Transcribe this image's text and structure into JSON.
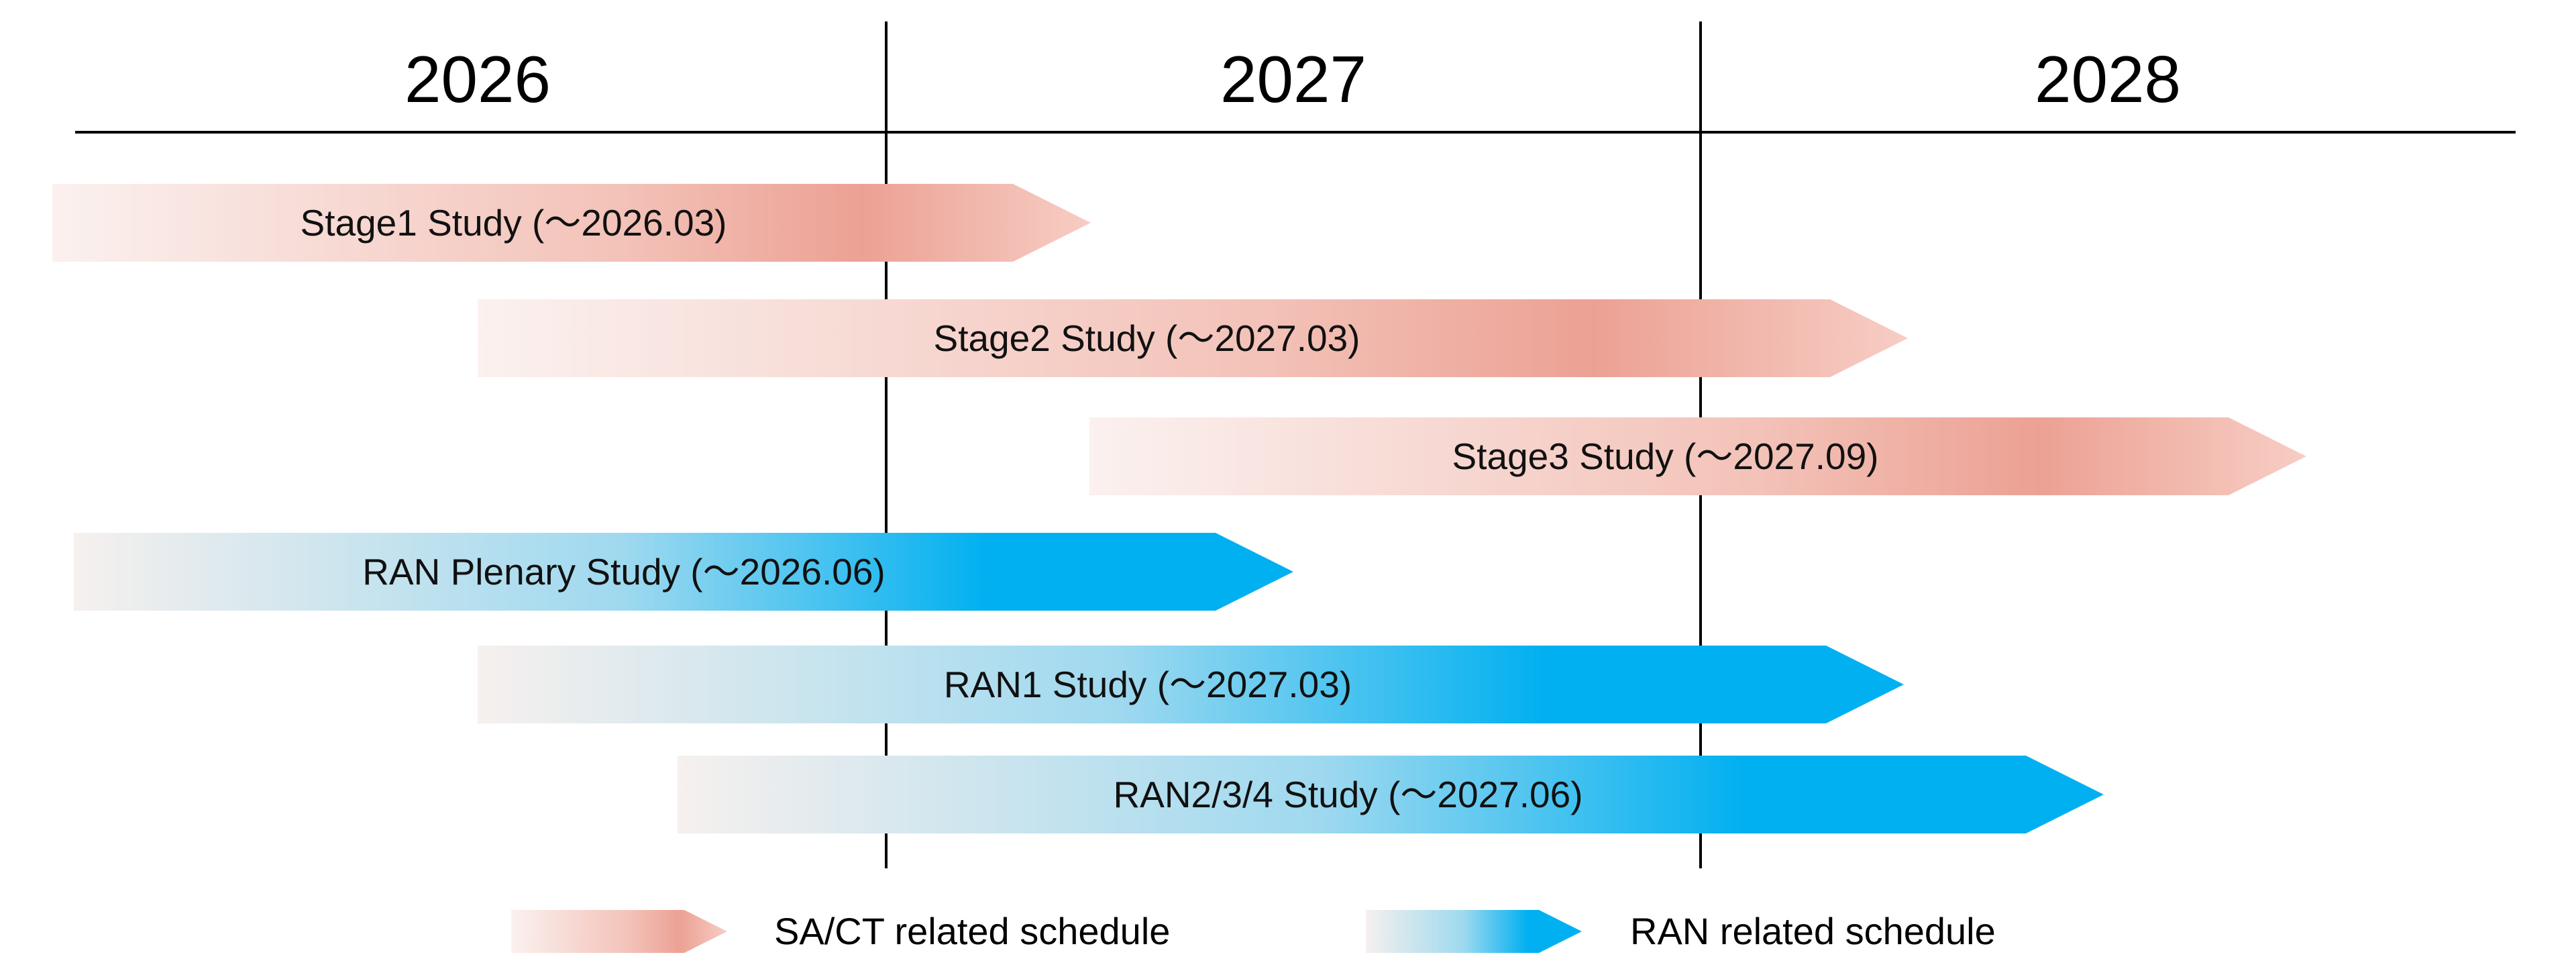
{
  "timeline": {
    "years": [
      "2026",
      "2027",
      "2028"
    ]
  },
  "colors": {
    "sa_ct_light": "#fbf1ef",
    "sa_ct_dark": "#eca194",
    "sa_ct_end": "#f7cdc4",
    "ran_light": "#f6f0ee",
    "ran_dark": "#00b0f0",
    "line": "#000000"
  },
  "schedules": [
    {
      "label": "Stage1 Study (～2026.03)",
      "category": "sa_ct",
      "end": "2026.03"
    },
    {
      "label": "Stage2 Study (～2027.03)",
      "category": "sa_ct",
      "end": "2027.03"
    },
    {
      "label": "Stage3 Study (～2027.09)",
      "category": "sa_ct",
      "end": "2027.09"
    },
    {
      "label": "RAN Plenary Study (～2026.06)",
      "category": "ran",
      "end": "2026.06"
    },
    {
      "label": "RAN1 Study (～2027.03)",
      "category": "ran",
      "end": "2027.03"
    },
    {
      "label": "RAN2/3/4 Study (～2027.06)",
      "category": "ran",
      "end": "2027.06"
    }
  ],
  "legend": {
    "sa_ct_label": "SA/CT related schedule",
    "ran_label": "RAN related schedule"
  }
}
